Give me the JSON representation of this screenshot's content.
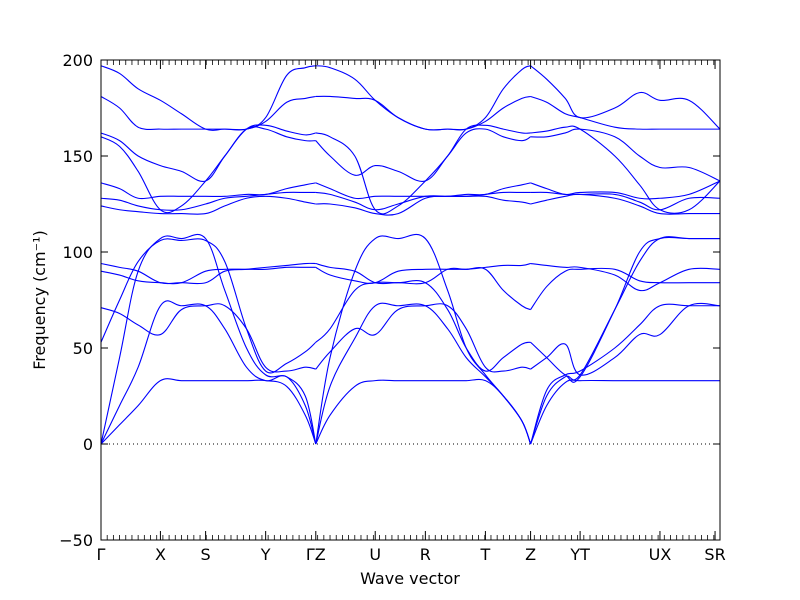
{
  "chart_data": {
    "type": "line",
    "title": "",
    "xlabel": "Wave vector",
    "ylabel": "Frequency (cm⁻¹)",
    "ylim": [
      -50,
      200
    ],
    "yticks": [
      -50,
      0,
      50,
      100,
      150,
      200
    ],
    "grid": false,
    "legend": "none",
    "line_color": "#0000ff",
    "zero_line": {
      "y": 0,
      "style": "dotted",
      "color": "#000000"
    },
    "path_length": 1.0,
    "high_symmetry_points": [
      {
        "label": "Γ",
        "x": 0.0
      },
      {
        "label": "X",
        "x": 0.096
      },
      {
        "label": "S",
        "x": 0.169
      },
      {
        "label": "Y",
        "x": 0.266
      },
      {
        "label": "ΓZ",
        "x": 0.347
      },
      {
        "label": "U",
        "x": 0.443
      },
      {
        "label": "R",
        "x": 0.524
      },
      {
        "label": "T",
        "x": 0.621
      },
      {
        "label": "Z",
        "x": 0.694
      },
      {
        "label": "YT",
        "x": 0.774
      },
      {
        "label": "UX",
        "x": 0.903
      },
      {
        "label": "SR",
        "x": 0.992
      }
    ],
    "series": [
      {
        "x": [
          0,
          0.03,
          0.06,
          0.096,
          0.13,
          0.169,
          0.2,
          0.235,
          0.266,
          0.3,
          0.33,
          0.347
        ],
        "values": [
          0,
          10,
          20,
          33,
          33,
          33,
          33,
          33,
          33,
          30,
          15,
          0
        ]
      },
      {
        "x": [
          0.347,
          0.37,
          0.41,
          0.443,
          0.48,
          0.524,
          0.56,
          0.59,
          0.621,
          0.65,
          0.68,
          0.694
        ],
        "values": [
          0,
          15,
          30,
          33,
          33,
          33,
          33,
          33,
          33,
          25,
          12,
          0
        ]
      },
      {
        "x": [
          0.694,
          0.72,
          0.75,
          0.774,
          0.83,
          0.87,
          0.903,
          0.95,
          1.0
        ],
        "values": [
          0,
          20,
          32,
          33,
          33,
          33,
          33,
          33,
          33
        ]
      },
      {
        "x": [
          0,
          0.03,
          0.06,
          0.096,
          0.13,
          0.169,
          0.2,
          0.235,
          0.266,
          0.3,
          0.33,
          0.347
        ],
        "values": [
          0,
          20,
          40,
          72,
          72,
          72,
          60,
          40,
          33,
          35,
          20,
          0
        ]
      },
      {
        "x": [
          0.347,
          0.37,
          0.41,
          0.443,
          0.48,
          0.524,
          0.56,
          0.59,
          0.621,
          0.65,
          0.68,
          0.694
        ],
        "values": [
          0,
          30,
          55,
          72,
          72,
          72,
          60,
          45,
          35,
          25,
          12,
          0
        ]
      },
      {
        "x": [
          0.694,
          0.72,
          0.75,
          0.774,
          0.83,
          0.87,
          0.903,
          0.95,
          1.0
        ],
        "values": [
          0,
          28,
          36,
          38,
          50,
          62,
          72,
          72,
          72
        ]
      },
      {
        "x": [
          0,
          0.03,
          0.06,
          0.096,
          0.13,
          0.169,
          0.2,
          0.235,
          0.266,
          0.3,
          0.33,
          0.347
        ],
        "values": [
          0,
          45,
          90,
          107,
          107,
          107,
          80,
          50,
          36,
          35,
          25,
          0
        ]
      },
      {
        "x": [
          0.347,
          0.37,
          0.41,
          0.443,
          0.48,
          0.524,
          0.56,
          0.59,
          0.621,
          0.65,
          0.68,
          0.694
        ],
        "values": [
          0,
          45,
          90,
          107,
          107,
          107,
          80,
          50,
          36,
          25,
          12,
          0
        ]
      },
      {
        "x": [
          0.694,
          0.72,
          0.75,
          0.774,
          0.83,
          0.87,
          0.903,
          0.95,
          1.0
        ],
        "values": [
          0,
          25,
          35,
          36,
          70,
          95,
          107,
          107,
          107
        ]
      },
      {
        "x": [
          0,
          0.03,
          0.06,
          0.096,
          0.13,
          0.169,
          0.2,
          0.235,
          0.266,
          0.3,
          0.33,
          0.347
        ],
        "values": [
          53,
          75,
          95,
          106,
          106,
          106,
          95,
          60,
          38,
          42,
          48,
          53
        ]
      },
      {
        "x": [
          0.347,
          0.37,
          0.41,
          0.443,
          0.48,
          0.524,
          0.56,
          0.59,
          0.621,
          0.65,
          0.68,
          0.694
        ],
        "values": [
          53,
          60,
          80,
          84,
          84,
          84,
          70,
          50,
          38,
          45,
          52,
          53
        ]
      },
      {
        "x": [
          0.694,
          0.72,
          0.75,
          0.774,
          0.83,
          0.87,
          0.903,
          0.95,
          1.0
        ],
        "values": [
          53,
          45,
          36,
          35,
          70,
          100,
          107,
          107,
          107
        ]
      },
      {
        "x": [
          0,
          0.03,
          0.06,
          0.096,
          0.13,
          0.169,
          0.2,
          0.235,
          0.266,
          0.3,
          0.33,
          0.347
        ],
        "values": [
          71,
          68,
          62,
          57,
          70,
          72,
          72,
          60,
          40,
          38,
          40,
          39
        ]
      },
      {
        "x": [
          0.347,
          0.37,
          0.41,
          0.443,
          0.48,
          0.524,
          0.56,
          0.59,
          0.621,
          0.65,
          0.68,
          0.694
        ],
        "values": [
          39,
          48,
          60,
          57,
          70,
          72,
          72,
          60,
          40,
          38,
          40,
          39
        ]
      },
      {
        "x": [
          0.694,
          0.72,
          0.75,
          0.774,
          0.83,
          0.87,
          0.903,
          0.95,
          1.0
        ],
        "values": [
          39,
          45,
          52,
          36,
          45,
          57,
          57,
          72,
          72
        ]
      },
      {
        "x": [
          0,
          0.03,
          0.06,
          0.096,
          0.13,
          0.169,
          0.2,
          0.235,
          0.266,
          0.3,
          0.33,
          0.347
        ],
        "values": [
          90,
          88,
          85,
          84,
          84,
          90,
          91,
          91,
          91,
          92,
          92,
          92
        ]
      },
      {
        "x": [
          0.347,
          0.37,
          0.41,
          0.443,
          0.48,
          0.524,
          0.56,
          0.59,
          0.621,
          0.65,
          0.68,
          0.694
        ],
        "values": [
          92,
          88,
          85,
          84,
          90,
          91,
          91,
          91,
          91,
          80,
          72,
          70
        ]
      },
      {
        "x": [
          0.694,
          0.72,
          0.75,
          0.774,
          0.83,
          0.87,
          0.903,
          0.95,
          1.0
        ],
        "values": [
          70,
          82,
          90,
          91,
          91,
          85,
          84,
          84,
          84
        ]
      },
      {
        "x": [
          0,
          0.03,
          0.06,
          0.096,
          0.13,
          0.169,
          0.2,
          0.235,
          0.266,
          0.3,
          0.33,
          0.347
        ],
        "values": [
          94,
          92,
          90,
          84,
          84,
          84,
          90,
          91,
          92,
          93,
          94,
          94
        ]
      },
      {
        "x": [
          0.347,
          0.37,
          0.41,
          0.443,
          0.48,
          0.524,
          0.56,
          0.59,
          0.621,
          0.65,
          0.68,
          0.694
        ],
        "values": [
          94,
          92,
          90,
          84,
          84,
          84,
          91,
          91,
          92,
          93,
          93,
          94
        ]
      },
      {
        "x": [
          0.694,
          0.72,
          0.75,
          0.774,
          0.83,
          0.87,
          0.903,
          0.95,
          1.0
        ],
        "values": [
          94,
          93,
          92,
          92,
          88,
          80,
          84,
          91,
          91
        ]
      },
      {
        "x": [
          0,
          0.03,
          0.06,
          0.096,
          0.13,
          0.169,
          0.2,
          0.235,
          0.266,
          0.3,
          0.33,
          0.347
        ],
        "values": [
          124,
          122,
          121,
          120,
          120,
          120,
          124,
          128,
          129,
          128,
          126,
          125
        ]
      },
      {
        "x": [
          0.347,
          0.37,
          0.41,
          0.443,
          0.48,
          0.524,
          0.56,
          0.59,
          0.621,
          0.65,
          0.68,
          0.694
        ],
        "values": [
          125,
          125,
          123,
          120,
          120,
          128,
          129,
          129,
          129,
          127,
          126,
          125
        ]
      },
      {
        "x": [
          0.694,
          0.72,
          0.75,
          0.774,
          0.83,
          0.87,
          0.903,
          0.95,
          1.0
        ],
        "values": [
          125,
          127,
          129,
          130,
          128,
          124,
          120,
          120,
          120
        ]
      },
      {
        "x": [
          0,
          0.03,
          0.06,
          0.096,
          0.13,
          0.169,
          0.2,
          0.235,
          0.266,
          0.3,
          0.33,
          0.347
        ],
        "values": [
          128,
          127,
          124,
          122,
          122,
          125,
          128,
          129,
          130,
          131,
          131,
          131
        ]
      },
      {
        "x": [
          0.347,
          0.37,
          0.41,
          0.443,
          0.48,
          0.524,
          0.56,
          0.59,
          0.621,
          0.65,
          0.68,
          0.694
        ],
        "values": [
          131,
          130,
          126,
          122,
          125,
          129,
          129,
          129,
          130,
          131,
          131,
          131
        ]
      },
      {
        "x": [
          0.694,
          0.72,
          0.75,
          0.774,
          0.83,
          0.87,
          0.903,
          0.95,
          1.0
        ],
        "values": [
          131,
          131,
          130,
          130,
          130,
          126,
          122,
          128,
          128
        ]
      },
      {
        "x": [
          0,
          0.03,
          0.06,
          0.096,
          0.13,
          0.169,
          0.2,
          0.235,
          0.266,
          0.3,
          0.33,
          0.347
        ],
        "values": [
          136,
          133,
          128,
          129,
          129,
          129,
          129,
          130,
          130,
          133,
          135,
          136
        ]
      },
      {
        "x": [
          0.347,
          0.37,
          0.41,
          0.443,
          0.48,
          0.524,
          0.56,
          0.59,
          0.621,
          0.65,
          0.68,
          0.694
        ],
        "values": [
          136,
          133,
          128,
          129,
          129,
          129,
          129,
          130,
          130,
          133,
          135,
          136
        ]
      },
      {
        "x": [
          0.694,
          0.72,
          0.75,
          0.774,
          0.83,
          0.87,
          0.903,
          0.95,
          1.0
        ],
        "values": [
          136,
          133,
          130,
          131,
          131,
          128,
          128,
          130,
          137
        ]
      },
      {
        "x": [
          0,
          0.03,
          0.06,
          0.096,
          0.13,
          0.169,
          0.2,
          0.235,
          0.266,
          0.3,
          0.33,
          0.347
        ],
        "values": [
          162,
          158,
          150,
          145,
          142,
          137,
          150,
          164,
          164,
          160,
          158,
          158
        ]
      },
      {
        "x": [
          0.347,
          0.37,
          0.41,
          0.443,
          0.48,
          0.524,
          0.56,
          0.59,
          0.621,
          0.65,
          0.68,
          0.694
        ],
        "values": [
          158,
          150,
          140,
          145,
          142,
          137,
          150,
          162,
          164,
          160,
          158,
          160
        ]
      },
      {
        "x": [
          0.694,
          0.72,
          0.75,
          0.774,
          0.83,
          0.87,
          0.903,
          0.95,
          1.0
        ],
        "values": [
          160,
          160,
          162,
          164,
          160,
          150,
          144,
          144,
          137
        ]
      },
      {
        "x": [
          0,
          0.03,
          0.06,
          0.096,
          0.13,
          0.169,
          0.2,
          0.235,
          0.266,
          0.3,
          0.33,
          0.347
        ],
        "values": [
          160,
          155,
          142,
          122,
          124,
          137,
          150,
          164,
          166,
          163,
          161,
          162
        ]
      },
      {
        "x": [
          0.347,
          0.37,
          0.41,
          0.443,
          0.48,
          0.524,
          0.56,
          0.59,
          0.621,
          0.65,
          0.68,
          0.694
        ],
        "values": [
          162,
          160,
          150,
          122,
          124,
          137,
          150,
          164,
          166,
          164,
          162,
          162
        ]
      },
      {
        "x": [
          0.694,
          0.72,
          0.75,
          0.774,
          0.83,
          0.87,
          0.903,
          0.95,
          1.0
        ],
        "values": [
          162,
          163,
          165,
          164,
          150,
          135,
          122,
          122,
          137
        ]
      },
      {
        "x": [
          0,
          0.03,
          0.06,
          0.096,
          0.13,
          0.169,
          0.2,
          0.235,
          0.266,
          0.3,
          0.33,
          0.347
        ],
        "values": [
          181,
          175,
          165,
          164,
          164,
          164,
          164,
          164,
          168,
          178,
          180,
          181
        ]
      },
      {
        "x": [
          0.347,
          0.37,
          0.41,
          0.443,
          0.48,
          0.524,
          0.56,
          0.59,
          0.621,
          0.65,
          0.68,
          0.694
        ],
        "values": [
          181,
          181,
          180,
          179,
          170,
          164,
          164,
          164,
          168,
          175,
          180,
          181
        ]
      },
      {
        "x": [
          0.694,
          0.72,
          0.75,
          0.774,
          0.83,
          0.87,
          0.903,
          0.95,
          1.0
        ],
        "values": [
          181,
          178,
          172,
          170,
          165,
          164,
          164,
          164,
          164
        ]
      },
      {
        "x": [
          0,
          0.03,
          0.06,
          0.096,
          0.13,
          0.169,
          0.2,
          0.235,
          0.266,
          0.3,
          0.33,
          0.347
        ],
        "values": [
          197,
          193,
          185,
          179,
          172,
          164,
          164,
          164,
          170,
          192,
          196,
          197
        ]
      },
      {
        "x": [
          0.347,
          0.37,
          0.41,
          0.443,
          0.48,
          0.524,
          0.56,
          0.59,
          0.621,
          0.65,
          0.68,
          0.694
        ],
        "values": [
          197,
          196,
          190,
          179,
          170,
          164,
          164,
          164,
          170,
          185,
          195,
          197
        ]
      },
      {
        "x": [
          0.694,
          0.72,
          0.75,
          0.774,
          0.83,
          0.87,
          0.903,
          0.95,
          1.0
        ],
        "values": [
          197,
          190,
          180,
          170,
          175,
          183,
          179,
          179,
          164
        ]
      }
    ]
  }
}
